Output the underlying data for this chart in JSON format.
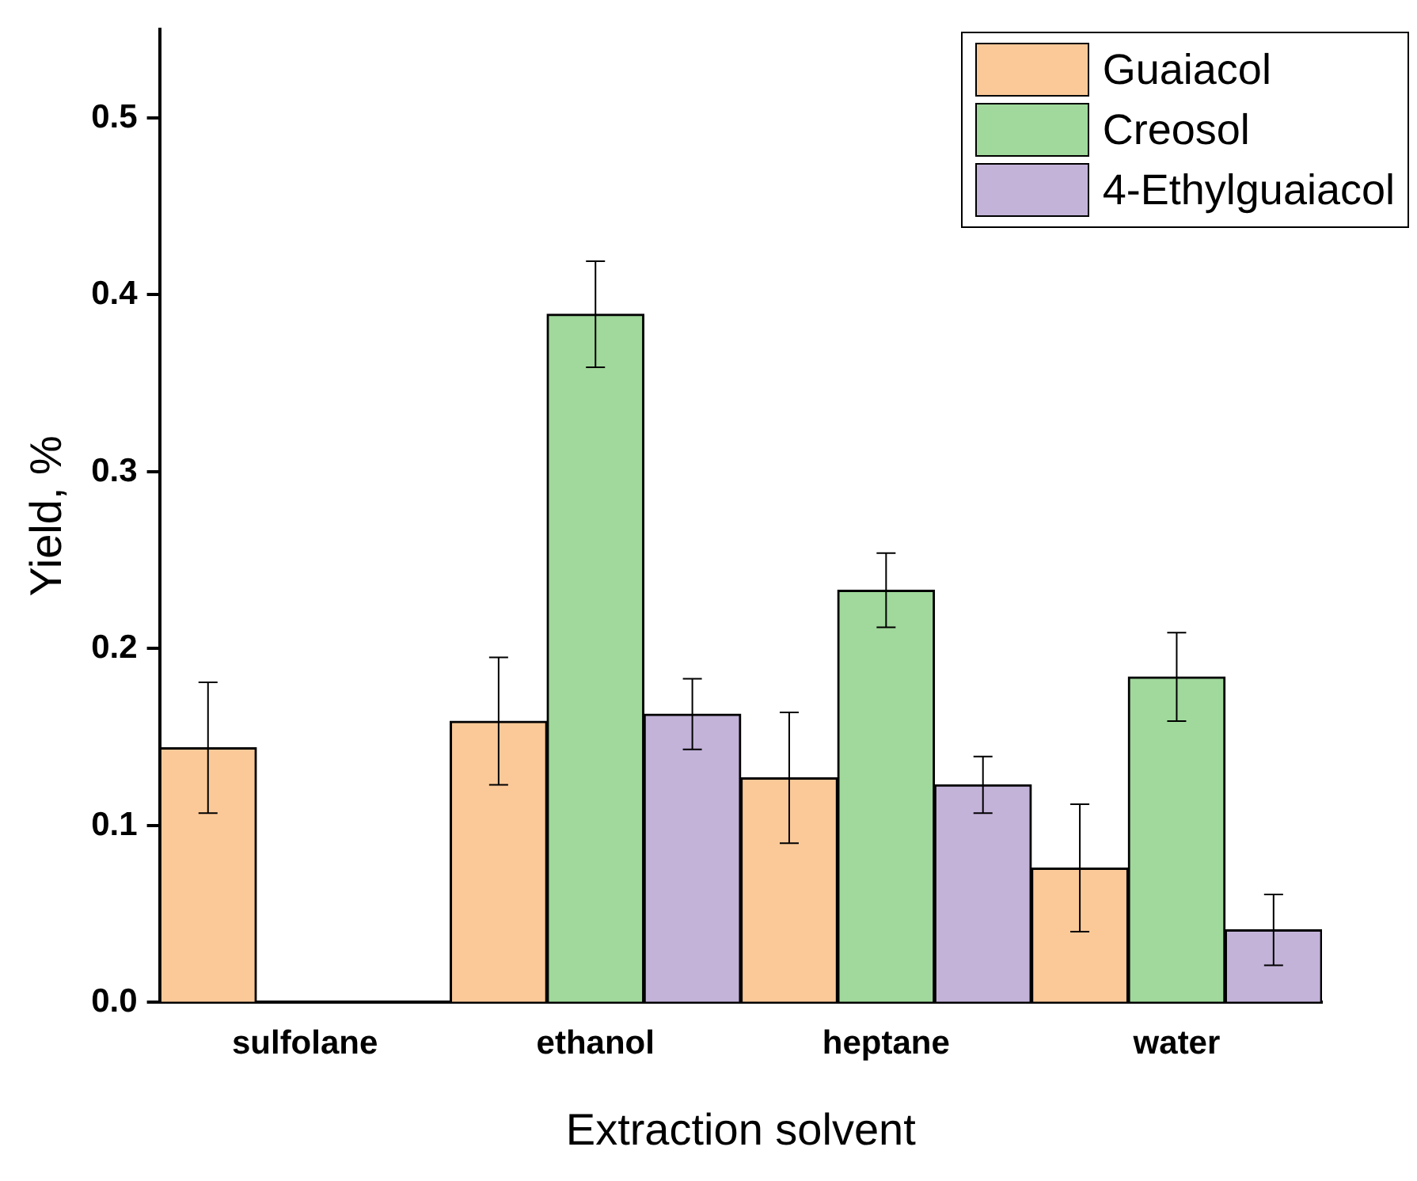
{
  "chart_data": {
    "type": "bar",
    "xlabel": "Extraction solvent",
    "ylabel": "Yield, %",
    "categories": [
      "sulfolane",
      "ethanol",
      "heptane",
      "water"
    ],
    "series": [
      {
        "name": "Guaiacol",
        "color": "#fbc998",
        "values": [
          0.144,
          0.159,
          0.127,
          0.076
        ],
        "errors": [
          0.037,
          0.036,
          0.037,
          0.036
        ]
      },
      {
        "name": "Creosol",
        "color": "#a0d99b",
        "values": [
          null,
          0.389,
          0.233,
          0.184
        ],
        "errors": [
          null,
          0.03,
          0.021,
          0.025
        ]
      },
      {
        "name": "4-Ethylguaiacol",
        "color": "#c3b3d9",
        "values": [
          null,
          0.163,
          0.123,
          0.041
        ],
        "errors": [
          null,
          0.02,
          0.016,
          0.02
        ]
      }
    ],
    "ylim": [
      0,
      0.55
    ],
    "yticks": [
      {
        "value": 0,
        "label": "0.0"
      },
      {
        "value": 0.1,
        "label": "0.1"
      },
      {
        "value": 0.2,
        "label": "0.2"
      },
      {
        "value": 0.3,
        "label": "0.3"
      },
      {
        "value": 0.4,
        "label": "0.4"
      },
      {
        "value": 0.5,
        "label": "0.5"
      }
    ],
    "grid": false,
    "legend": "top right"
  }
}
